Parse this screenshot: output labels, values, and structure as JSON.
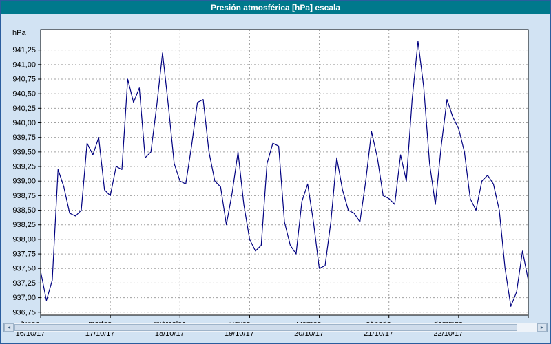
{
  "window": {
    "title": "Presión atmosférica [hPa] escala"
  },
  "scrollbar": {
    "left_arrow": "◄",
    "right_arrow": "►"
  },
  "chart_data": {
    "type": "line",
    "title": "Presión atmosférica [hPa] escala",
    "ylabel": "hPa",
    "unit": "hPa",
    "ylim": [
      936.7,
      941.6
    ],
    "yticks": {
      "start": 936.75,
      "end": 941.25,
      "step": 0.25
    },
    "grid": true,
    "grid_style": "dashed",
    "line_color": "#000080",
    "grid_color": "#a0a0a0",
    "plot_bg": "#ffffff",
    "days": [
      {
        "name": "lunes",
        "date": "16/10/17"
      },
      {
        "name": "martes",
        "date": "17/10/17"
      },
      {
        "name": "miércoles",
        "date": "18/10/17"
      },
      {
        "name": "jueves",
        "date": "19/10/17"
      },
      {
        "name": "viernes",
        "date": "20/10/17"
      },
      {
        "name": "sábado",
        "date": "21/10/17"
      },
      {
        "name": "domingo",
        "date": "22/10/17"
      }
    ],
    "x_start": "lunes 16/10/17 00:00",
    "sample_interval_hours": 2,
    "values": [
      937.45,
      936.95,
      937.3,
      939.2,
      938.9,
      938.45,
      938.4,
      938.5,
      939.65,
      939.45,
      939.75,
      938.85,
      938.75,
      939.25,
      939.2,
      940.75,
      940.35,
      940.6,
      939.4,
      939.5,
      940.3,
      941.2,
      940.3,
      939.3,
      939.0,
      938.95,
      939.6,
      940.35,
      940.4,
      939.5,
      939.0,
      938.9,
      938.25,
      938.8,
      939.5,
      938.6,
      938.0,
      937.8,
      937.9,
      939.3,
      939.65,
      939.6,
      938.3,
      937.9,
      937.75,
      938.65,
      938.95,
      938.3,
      937.5,
      937.55,
      938.3,
      939.4,
      938.85,
      938.5,
      938.45,
      938.3,
      939.0,
      939.85,
      939.4,
      938.75,
      938.7,
      938.6,
      939.45,
      939.0,
      940.4,
      941.4,
      940.6,
      939.3,
      938.6,
      939.6,
      940.4,
      940.1,
      939.9,
      939.5,
      938.7,
      938.5,
      939.0,
      939.1,
      938.95,
      938.5,
      937.5,
      936.85,
      937.1,
      937.8,
      937.3
    ]
  }
}
